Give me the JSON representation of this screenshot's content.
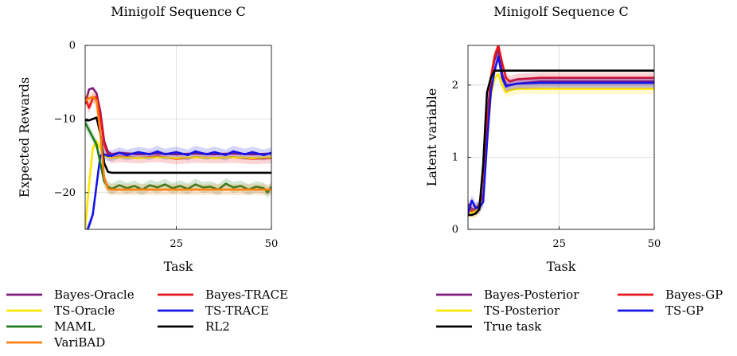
{
  "chart_data": [
    {
      "type": "line",
      "title": "Minigolf Sequence C",
      "xlabel": "Task",
      "ylabel": "Expected Rewards",
      "xlim": [
        1,
        50
      ],
      "ylim": [
        -25,
        0
      ],
      "xticks": [
        25,
        50
      ],
      "yticks": [
        0,
        -10,
        -20
      ],
      "ytick_labels": [
        "0",
        "−10",
        "−20"
      ],
      "grid": true,
      "legend_position": "bottom",
      "series": [
        {
          "name": "Bayes-Oracle",
          "color": "#7b1a7b",
          "band": false,
          "x": [
            1,
            2,
            3,
            4,
            5,
            6,
            7,
            8,
            10,
            15,
            20,
            25,
            30,
            35,
            40,
            45,
            50
          ],
          "y": [
            -8,
            -6,
            -5.8,
            -6.5,
            -9,
            -13,
            -14.5,
            -14.8,
            -14.6,
            -14.8,
            -14.7,
            -14.8,
            -14.7,
            -14.8,
            -14.7,
            -14.8,
            -14.7
          ]
        },
        {
          "name": "Bayes-TRACE",
          "color": "#e8141c",
          "band": true,
          "x": [
            1,
            2,
            3,
            4,
            5,
            6,
            7,
            8,
            10,
            15,
            20,
            25,
            30,
            35,
            40,
            45,
            50
          ],
          "y": [
            -7,
            -8.5,
            -7.2,
            -7,
            -9.5,
            -13.5,
            -14.8,
            -15.3,
            -15.1,
            -15.3,
            -15.1,
            -15.4,
            -15.2,
            -15.3,
            -15.2,
            -15.4,
            -15.3
          ]
        },
        {
          "name": "TS-Oracle",
          "color": "#ffe600",
          "band": false,
          "x": [
            1,
            2,
            3,
            4,
            5,
            6,
            7,
            8,
            10,
            15,
            20,
            25,
            30,
            35,
            40,
            45,
            50
          ],
          "y": [
            -25,
            -19,
            -14,
            -13,
            -14,
            -15,
            -15.2,
            -15.3,
            -15.2,
            -15.3,
            -15.2,
            -15.3,
            -15.2,
            -15.3,
            -15.2,
            -15.3,
            -15.2
          ]
        },
        {
          "name": "TS-TRACE",
          "color": "#1515e8",
          "band": true,
          "x": [
            1,
            2,
            3,
            4,
            5,
            6,
            7,
            8,
            10,
            12,
            15,
            18,
            20,
            22,
            25,
            28,
            30,
            33,
            35,
            38,
            40,
            43,
            45,
            48,
            50
          ],
          "y": [
            -26,
            -24.5,
            -23,
            -19,
            -15,
            -14.8,
            -15,
            -15,
            -14.6,
            -14.9,
            -14.5,
            -14.8,
            -14.4,
            -14.8,
            -14.5,
            -14.9,
            -14.4,
            -14.8,
            -14.5,
            -14.9,
            -14.4,
            -14.8,
            -14.5,
            -14.9,
            -14.6
          ]
        },
        {
          "name": "MAML",
          "color": "#1e7b1e",
          "band": true,
          "x": [
            1,
            2,
            3,
            4,
            5,
            6,
            7,
            8,
            10,
            12,
            14,
            16,
            18,
            20,
            22,
            24,
            26,
            28,
            30,
            32,
            34,
            36,
            38,
            40,
            42,
            44,
            46,
            48,
            49,
            50
          ],
          "y": [
            -10.5,
            -11.5,
            -12.5,
            -13.5,
            -16,
            -18.5,
            -19.2,
            -19.5,
            -19,
            -19.4,
            -19.1,
            -19.6,
            -19,
            -19.3,
            -18.9,
            -19.4,
            -19.1,
            -19.5,
            -18.9,
            -19.3,
            -19.2,
            -19.6,
            -18.8,
            -19.3,
            -19.1,
            -19.6,
            -19.2,
            -19.4,
            -20,
            -19.2
          ]
        },
        {
          "name": "RL2",
          "color": "#000000",
          "band": false,
          "x": [
            1,
            2,
            3,
            4,
            5,
            6,
            7,
            8,
            10,
            15,
            20,
            25,
            30,
            35,
            40,
            45,
            50
          ],
          "y": [
            -10.2,
            -10.2,
            -10,
            -9.8,
            -12,
            -16,
            -17.2,
            -17.3,
            -17.3,
            -17.3,
            -17.3,
            -17.3,
            -17.3,
            -17.3,
            -17.3,
            -17.3,
            -17.3
          ]
        },
        {
          "name": "VariBAD",
          "color": "#ff7f0e",
          "band": true,
          "x": [
            1,
            2,
            3,
            4,
            5,
            6,
            7,
            8,
            10,
            15,
            20,
            25,
            30,
            35,
            40,
            45,
            50
          ],
          "y": [
            -7.5,
            -7.2,
            -7,
            -7.5,
            -12,
            -18,
            -19.5,
            -19.6,
            -19.6,
            -19.6,
            -19.6,
            -19.6,
            -19.6,
            -19.6,
            -19.6,
            -19.6,
            -19.6
          ]
        }
      ]
    },
    {
      "type": "line",
      "title": "Minigolf Sequence C",
      "xlabel": "Task",
      "ylabel": "Latent  variable",
      "xlim": [
        1,
        50
      ],
      "ylim": [
        0,
        2.55
      ],
      "xticks": [
        25,
        50
      ],
      "yticks": [
        0,
        1,
        2
      ],
      "ytick_labels": [
        "0",
        "1",
        "2"
      ],
      "grid": true,
      "legend_position": "bottom",
      "series": [
        {
          "name": "Bayes-Posterior",
          "color": "#7b1a7b",
          "band": true,
          "x": [
            1,
            2,
            3,
            4,
            5,
            6,
            7,
            8,
            9,
            10,
            11,
            12,
            14,
            20,
            30,
            40,
            50
          ],
          "y": [
            0.35,
            0.28,
            0.28,
            0.35,
            0.5,
            1.5,
            2.1,
            2.35,
            2.5,
            2.15,
            2.0,
            2.0,
            2.02,
            2.05,
            2.05,
            2.05,
            2.05
          ]
        },
        {
          "name": "Bayes-GP",
          "color": "#e8141c",
          "band": true,
          "x": [
            1,
            2,
            3,
            4,
            5,
            6,
            7,
            8,
            9,
            10,
            11,
            12,
            14,
            20,
            30,
            40,
            50
          ],
          "y": [
            0.3,
            0.25,
            0.25,
            0.3,
            0.45,
            1.4,
            2.1,
            2.4,
            2.55,
            2.3,
            2.1,
            2.05,
            2.08,
            2.1,
            2.1,
            2.1,
            2.1
          ]
        },
        {
          "name": "TS-Posterior",
          "color": "#ffe600",
          "band": true,
          "x": [
            1,
            2,
            3,
            4,
            5,
            6,
            7,
            8,
            9,
            10,
            11,
            12,
            14,
            20,
            30,
            40,
            50
          ],
          "y": [
            0.25,
            0.22,
            0.25,
            0.3,
            0.4,
            1.2,
            1.85,
            2.1,
            2.15,
            2.0,
            1.9,
            1.93,
            1.95,
            1.95,
            1.95,
            1.95,
            1.95
          ]
        },
        {
          "name": "TS-GP",
          "color": "#1515e8",
          "band": true,
          "x": [
            1,
            2,
            3,
            4,
            5,
            6,
            7,
            8,
            9,
            10,
            11,
            12,
            14,
            20,
            30,
            40,
            50
          ],
          "y": [
            0.22,
            0.4,
            0.3,
            0.3,
            0.38,
            1.2,
            1.9,
            2.2,
            2.4,
            2.1,
            1.98,
            2.0,
            2.02,
            2.03,
            2.03,
            2.03,
            2.03
          ]
        },
        {
          "name": "True task",
          "color": "#000000",
          "band": false,
          "x": [
            1,
            2,
            3,
            4,
            5,
            6,
            7,
            8,
            9,
            50
          ],
          "y": [
            0.2,
            0.2,
            0.22,
            0.28,
            0.9,
            1.9,
            2.1,
            2.2,
            2.2,
            2.2
          ]
        }
      ]
    }
  ]
}
